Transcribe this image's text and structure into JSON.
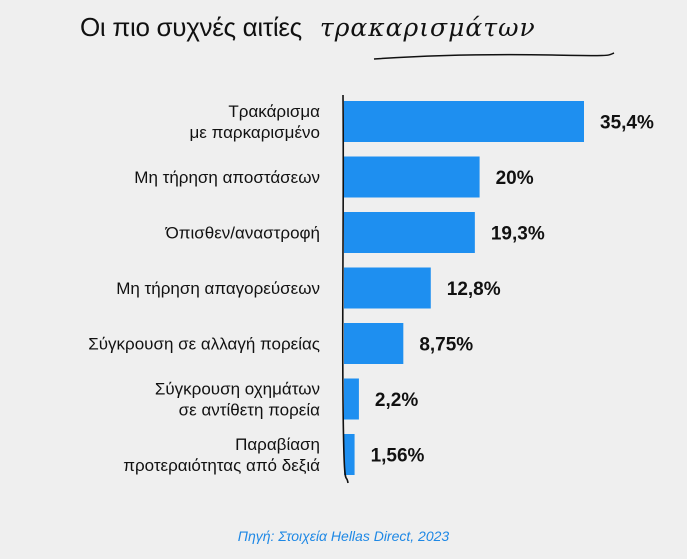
{
  "title": {
    "main": "Οι πιο συχνές αιτίες",
    "script": "τρακαρισμάτων"
  },
  "source": "Πηγή: Στοιχεία Hellas Direct, 2023",
  "colors": {
    "bar": "#1e8ff0",
    "axis": "#111111",
    "source": "#1e88e5"
  },
  "chart_data": {
    "type": "bar",
    "orientation": "horizontal",
    "title": "Οι πιο συχνές αιτίες τρακαρισμάτων",
    "categories": [
      [
        "Τρακάρισμα",
        "με παρκαρισμένο"
      ],
      [
        "Μη τήρηση αποστάσεων"
      ],
      [
        "Όπισθεν/αναστροφή"
      ],
      [
        "Μη τήρηση απαγορεύσεων"
      ],
      [
        "Σύγκρουση σε αλλαγή πορείας"
      ],
      [
        "Σύγκρουση οχημάτων",
        "σε αντίθετη πορεία"
      ],
      [
        "Παραβίαση",
        "προτεραιότητας από δεξιά"
      ]
    ],
    "values": [
      35.4,
      20,
      19.3,
      12.8,
      8.75,
      2.2,
      1.56
    ],
    "value_labels": [
      "35,4%",
      "20%",
      "19,3%",
      "12,8%",
      "8,75%",
      "2,2%",
      "1,56%"
    ],
    "xlim": [
      0,
      35.4
    ],
    "grid": false,
    "legend": "none"
  }
}
